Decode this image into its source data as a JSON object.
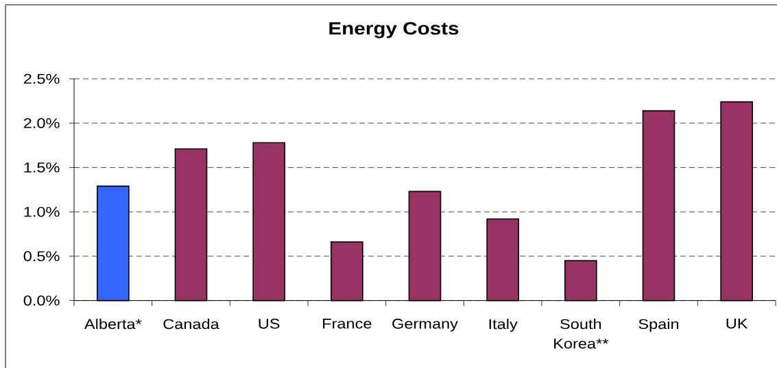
{
  "chart_data": {
    "type": "bar",
    "title": "Energy Costs",
    "categories": [
      "Alberta*",
      "Canada",
      "US",
      "France",
      "Germany",
      "Italy",
      "South Korea**",
      "Spain",
      "UK"
    ],
    "values": [
      1.29,
      1.71,
      1.78,
      0.66,
      1.23,
      0.92,
      0.45,
      2.14,
      2.24
    ],
    "colors": [
      "#3366ff",
      "#993366",
      "#993366",
      "#993366",
      "#993366",
      "#993366",
      "#993366",
      "#993366",
      "#993366"
    ],
    "ylim": [
      0,
      2.5
    ],
    "yticks": [
      {
        "value": 0,
        "label": "0.0%"
      },
      {
        "value": 0.5,
        "label": "0.5%"
      },
      {
        "value": 1,
        "label": "1.0%"
      },
      {
        "value": 1.5,
        "label": "1.5%"
      },
      {
        "value": 2,
        "label": "2.0%"
      },
      {
        "value": 2.5,
        "label": "2.5%"
      }
    ],
    "grid": "y"
  }
}
